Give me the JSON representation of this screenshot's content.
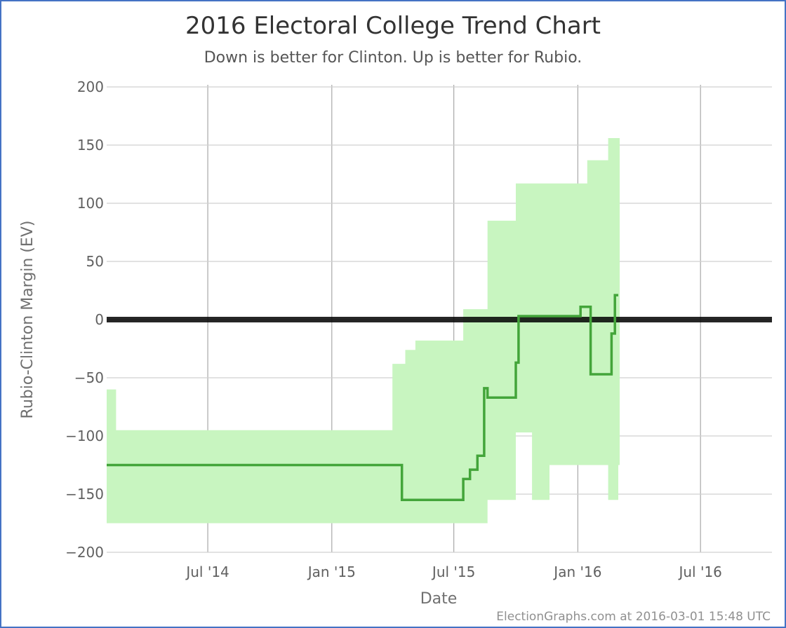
{
  "chart_data": {
    "type": "line",
    "title": "2016 Electoral College Trend Chart",
    "subtitle": "Down is better for Clinton. Up is better for Rubio.",
    "xlabel": "Date",
    "ylabel": "Rubio-Clinton Margin (EV)",
    "credit": "ElectionGraphs.com at 2016-03-01 15:48 UTC",
    "xlim": [
      "2014-02-01",
      "2016-10-15"
    ],
    "ylim": [
      -200,
      200
    ],
    "x_ticks": [
      {
        "date": "2014-07-01",
        "label": "Jul '14"
      },
      {
        "date": "2015-01-01",
        "label": "Jan '15"
      },
      {
        "date": "2015-07-01",
        "label": "Jul '15"
      },
      {
        "date": "2016-01-01",
        "label": "Jan '16"
      },
      {
        "date": "2016-07-01",
        "label": "Jul '16"
      }
    ],
    "y_ticks": [
      200,
      150,
      100,
      50,
      0,
      -50,
      -100,
      -150,
      -200
    ],
    "grid": true,
    "zero_line": true,
    "colors": {
      "band": "#c8f5c0",
      "line": "#43a53a",
      "zero_line": "#000000",
      "grid": "#d0d0d0",
      "frame": "#4472c4"
    },
    "series": [
      {
        "role": "range",
        "x": [
          "2014-02-01",
          "2014-02-15",
          "2015-04-01",
          "2015-04-20",
          "2015-05-05",
          "2015-07-15",
          "2015-08-05",
          "2015-08-20",
          "2015-10-01",
          "2015-10-25",
          "2015-11-20",
          "2016-01-15",
          "2016-02-15",
          "2016-03-01"
        ],
        "low": [
          -175,
          -175,
          -175,
          -175,
          -175,
          -175,
          -175,
          -155,
          -97,
          -155,
          -125,
          -125,
          -155,
          -125
        ],
        "high": [
          -60,
          -95,
          -38,
          -26,
          -18,
          9,
          9,
          85,
          117,
          117,
          117,
          137,
          156,
          156
        ]
      },
      {
        "role": "expected",
        "x": [
          "2014-02-01",
          "2015-04-15",
          "2015-07-15",
          "2015-07-25",
          "2015-08-05",
          "2015-08-15",
          "2015-08-20",
          "2015-09-01",
          "2015-10-01",
          "2015-10-05",
          "2015-10-10",
          "2016-01-05",
          "2016-01-10",
          "2016-01-20",
          "2016-02-15",
          "2016-02-20",
          "2016-02-25",
          "2016-03-01"
        ],
        "y": [
          -125,
          -155,
          -137,
          -129,
          -117,
          -59,
          -67,
          -67,
          -37,
          3,
          3,
          11,
          11,
          -47,
          -47,
          -12,
          21,
          21
        ]
      }
    ]
  }
}
